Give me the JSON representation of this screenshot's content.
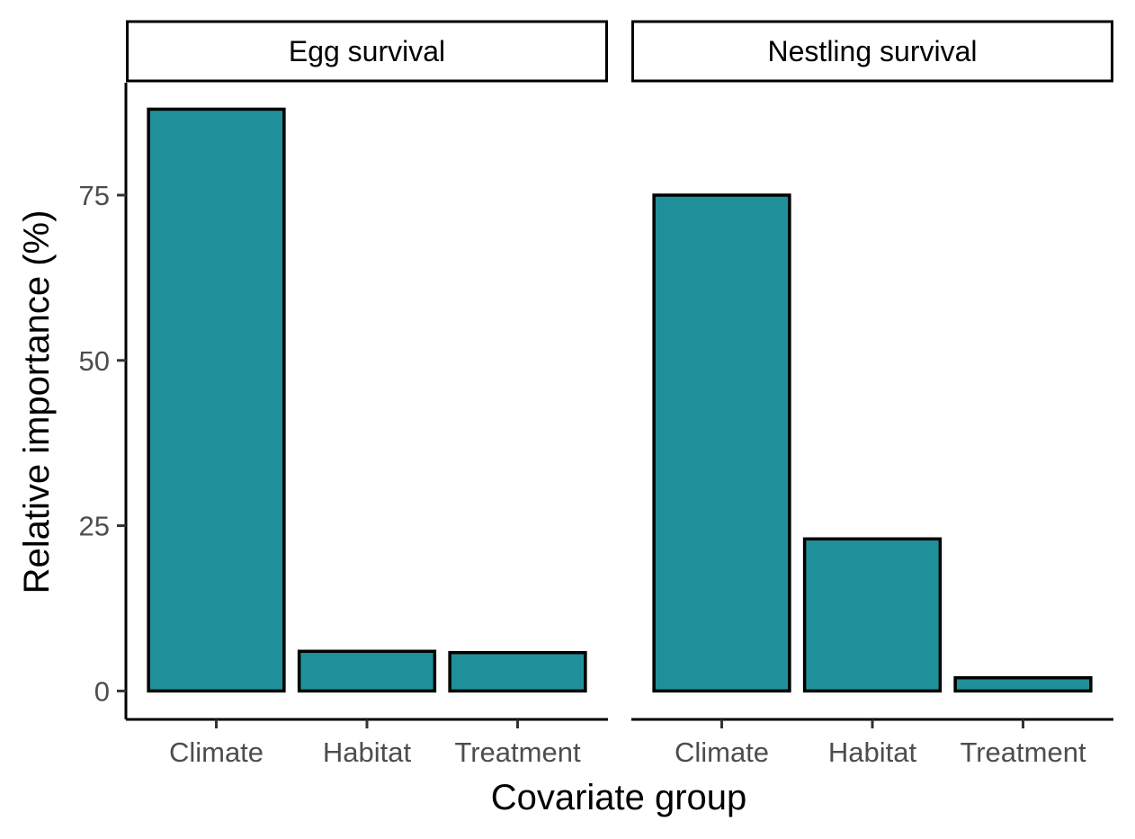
{
  "chart_data": {
    "type": "bar",
    "xlabel": "Covariate group",
    "ylabel": "Relative importance (%)",
    "ylim": [
      -4.3,
      92
    ],
    "yticks": [
      0,
      25,
      50,
      75
    ],
    "categories": [
      "Climate",
      "Habitat",
      "Treatment"
    ],
    "bar_color": "#1f9099",
    "grid": false,
    "legend": "none",
    "panels": [
      {
        "title": "Egg survival",
        "values": [
          88,
          6,
          5.8
        ]
      },
      {
        "title": "Nestling survival",
        "values": [
          75,
          23,
          2
        ]
      }
    ]
  }
}
